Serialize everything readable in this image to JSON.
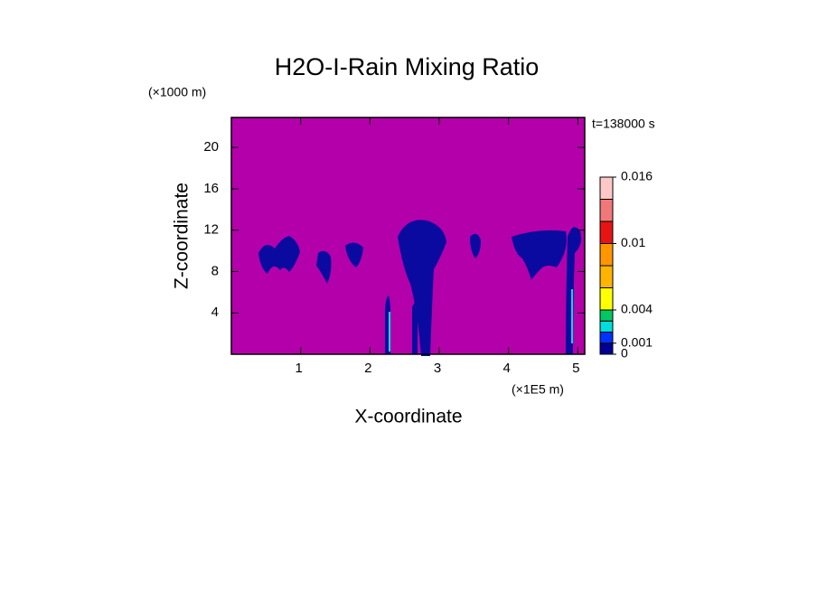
{
  "chart_data": {
    "type": "contour",
    "title": "H2O-I-Rain Mixing Ratio",
    "x_label": "X-coordinate",
    "y_label": "Z-coordinate",
    "x_unit": "(×1E5 m)",
    "y_unit": "(×1000 m)",
    "annotation": "t=138000 s",
    "xlim": [
      0,
      5.1
    ],
    "ylim": [
      0,
      22.9
    ],
    "xticks": [
      1,
      2,
      3,
      4,
      5
    ],
    "yticks": [
      4,
      8,
      12,
      16,
      20
    ],
    "background_color": "#b400aa",
    "colorbar": {
      "levels": [
        0,
        0.001,
        0.002,
        0.003,
        0.004,
        0.006,
        0.008,
        0.01,
        0.012,
        0.014,
        0.016
      ],
      "colors": [
        "#000096",
        "#0032ff",
        "#00dcdc",
        "#00c864",
        "#ffff00",
        "#ffb400",
        "#ff9600",
        "#e61414",
        "#f07878",
        "#ffc8c8"
      ],
      "ticks": [
        0,
        0.001,
        0.004,
        0.01,
        0.016
      ]
    }
  }
}
